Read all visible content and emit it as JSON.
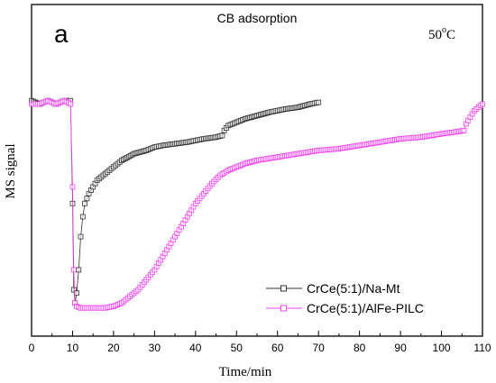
{
  "chart_data": {
    "type": "line",
    "panel_label": "a",
    "title": "CB adsorption",
    "annotation_temp": "50",
    "annotation_sup": "o",
    "annotation_unit": "C",
    "xlabel": "Time/min",
    "ylabel": "MS signal",
    "xlim": [
      0,
      110
    ],
    "ylim": [
      0,
      1
    ],
    "x_ticks": [
      "0",
      "10",
      "20",
      "30",
      "40",
      "50",
      "60",
      "70",
      "80",
      "90",
      "100",
      "110"
    ],
    "legend_position": "lower-right",
    "grid": false,
    "series": [
      {
        "name": "CrCe(5:1)/Na-Mt",
        "color": "#333333",
        "marker": "square",
        "x": [
          0,
          2,
          4,
          6,
          8,
          9.5,
          10.0,
          10.3,
          10.6,
          11,
          11.5,
          12,
          12.5,
          13,
          14,
          15,
          16,
          18,
          20,
          22,
          25,
          28,
          30,
          32,
          35,
          38,
          40,
          42,
          45,
          46.5,
          47,
          48,
          50,
          52,
          55,
          58,
          60,
          62,
          65,
          68,
          70
        ],
        "values": [
          0.71,
          0.7,
          0.71,
          0.7,
          0.71,
          0.71,
          0.4,
          0.14,
          0.1,
          0.13,
          0.2,
          0.3,
          0.36,
          0.4,
          0.43,
          0.45,
          0.47,
          0.49,
          0.51,
          0.53,
          0.55,
          0.56,
          0.57,
          0.575,
          0.58,
          0.585,
          0.59,
          0.595,
          0.6,
          0.605,
          0.62,
          0.635,
          0.645,
          0.655,
          0.665,
          0.675,
          0.68,
          0.685,
          0.69,
          0.7,
          0.705
        ]
      },
      {
        "name": "CrCe(5:1)/AlFe-PILC",
        "color": "#ee44ee",
        "marker": "square",
        "x": [
          0,
          2,
          4,
          6,
          8,
          9.5,
          10.0,
          10.3,
          10.6,
          11,
          12,
          14,
          16,
          18,
          20,
          22,
          24,
          26,
          28,
          30,
          32,
          34,
          36,
          38,
          40,
          42,
          44,
          46,
          48,
          50,
          52,
          55,
          60,
          65,
          70,
          75,
          80,
          85,
          90,
          95,
          100,
          103,
          105.5,
          106,
          107,
          108,
          109,
          110
        ],
        "values": [
          0.7,
          0.7,
          0.71,
          0.7,
          0.71,
          0.7,
          0.45,
          0.2,
          0.1,
          0.09,
          0.085,
          0.085,
          0.085,
          0.085,
          0.09,
          0.1,
          0.12,
          0.14,
          0.17,
          0.2,
          0.24,
          0.28,
          0.32,
          0.36,
          0.4,
          0.43,
          0.46,
          0.485,
          0.5,
          0.51,
          0.52,
          0.53,
          0.54,
          0.55,
          0.56,
          0.565,
          0.575,
          0.585,
          0.595,
          0.6,
          0.61,
          0.615,
          0.62,
          0.64,
          0.66,
          0.68,
          0.69,
          0.7
        ]
      }
    ]
  }
}
